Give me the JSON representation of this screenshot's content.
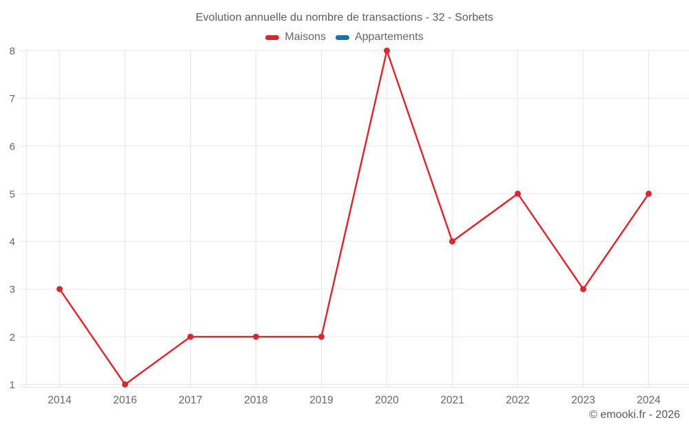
{
  "page": {
    "attribution": "© emooki.fr - 2026"
  },
  "chart_data": {
    "type": "line",
    "title": "Evolution annuelle du nombre de transactions - 32 - Sorbets",
    "categories": [
      "2014",
      "2016",
      "2017",
      "2018",
      "2019",
      "2020",
      "2021",
      "2022",
      "2023",
      "2024"
    ],
    "series": [
      {
        "name": "Maisons",
        "color": "#d9282e",
        "values": [
          3,
          1,
          2,
          2,
          2,
          8,
          4,
          5,
          3,
          5
        ]
      },
      {
        "name": "Appartements",
        "color": "#1d71a9",
        "values": [
          null,
          null,
          null,
          null,
          null,
          null,
          null,
          null,
          null,
          null
        ]
      }
    ],
    "yticks": [
      1,
      2,
      3,
      4,
      5,
      6,
      7,
      8
    ],
    "ylim": [
      1,
      8
    ],
    "xlabel": "",
    "ylabel": "",
    "grid": true,
    "legend_position": "top",
    "colors": {
      "gridline": "#e8e8e8",
      "axis_line": "#e3e3e3",
      "tick_text": "#666666"
    }
  }
}
